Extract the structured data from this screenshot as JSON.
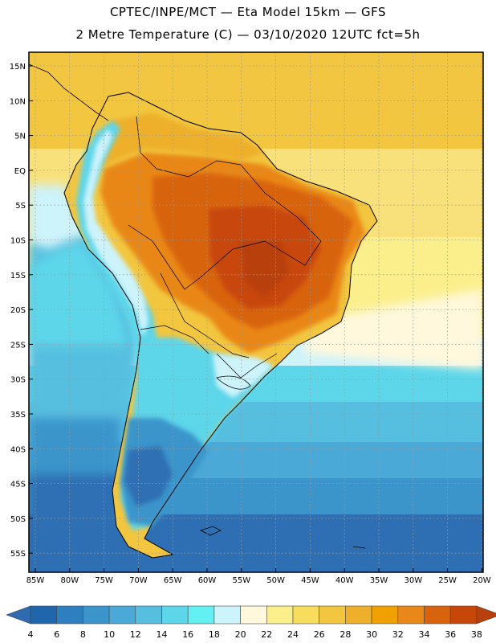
{
  "header": {
    "line1": "CPTEC/INPE/MCT —  Eta Model 15km — GFS",
    "line2": "2 Metre Temperature (C) — 03/10/2020 12UTC fct=5h"
  },
  "axes": {
    "lat_labels": [
      "15N",
      "10N",
      "5N",
      "EQ",
      "5S",
      "10S",
      "15S",
      "20S",
      "25S",
      "30S",
      "35S",
      "40S",
      "45S",
      "50S",
      "55S"
    ],
    "lon_labels": [
      "85W",
      "80W",
      "75W",
      "70W",
      "65W",
      "60W",
      "55W",
      "50W",
      "45W",
      "40W",
      "35W",
      "30W",
      "25W",
      "20W"
    ]
  },
  "colorbar": {
    "colors": [
      "#1f66ad",
      "#2e7fbf",
      "#3b95cb",
      "#4aa9d6",
      "#56bfe0",
      "#5dd6ea",
      "#63f0f3",
      "#cdf3fb",
      "#fff8dc",
      "#fbef8c",
      "#f8dc5c",
      "#f2c73f",
      "#eeb02b",
      "#f0a000",
      "#e98718",
      "#d8630c",
      "#c74708"
    ],
    "low_color": "#2f6bb0",
    "high_color": "#b8400b",
    "labels": [
      "4",
      "6",
      "8",
      "10",
      "12",
      "14",
      "16",
      "18",
      "20",
      "22",
      "24",
      "26",
      "28",
      "30",
      "32",
      "34",
      "36",
      "38"
    ]
  }
}
